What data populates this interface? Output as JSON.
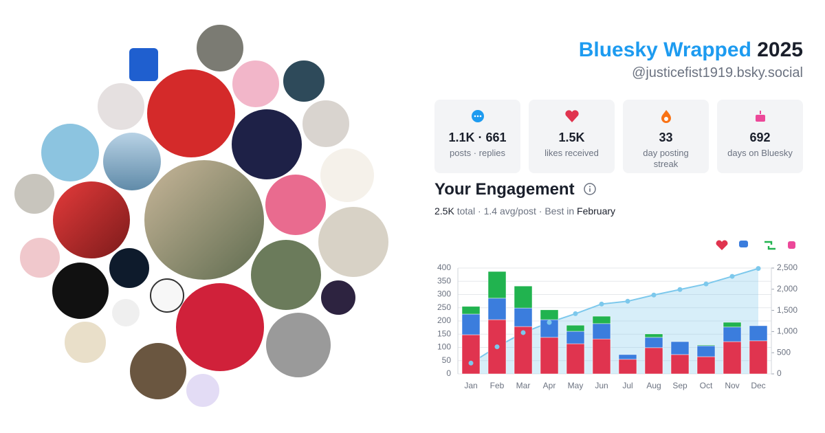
{
  "header": {
    "title": "Bluesky Wrapped",
    "year": "2025",
    "handle": "@justicefist1919.bsky.social"
  },
  "stats": [
    {
      "value": "1.1K · 661",
      "label": "posts · replies"
    },
    {
      "value": "1.5K",
      "label": "likes received"
    },
    {
      "value": "33",
      "label": "day posting streak"
    },
    {
      "value": "692",
      "label": "days on Bluesky"
    }
  ],
  "engagement": {
    "title": "Your Engagement",
    "total": "2.5K",
    "summary": " total · 1.4 avg/post · Best in ",
    "best": "February"
  },
  "chart_data": {
    "type": "stacked-bar-line",
    "categories": [
      "Jan",
      "Feb",
      "Mar",
      "Apr",
      "May",
      "Jun",
      "Jul",
      "Aug",
      "Sep",
      "Oct",
      "Nov",
      "Dec"
    ],
    "series": [
      {
        "color": "#e0344f",
        "values": [
          148,
          205,
          179,
          138,
          114,
          132,
          55,
          99,
          73,
          65,
          122,
          125
        ]
      },
      {
        "color": "#3b7ddd",
        "values": [
          78,
          81,
          70,
          67,
          47,
          58,
          18,
          39,
          49,
          41,
          55,
          57
        ]
      },
      {
        "color": "#21b34f",
        "values": [
          29,
          101,
          83,
          37,
          23,
          28,
          0,
          13,
          0,
          3,
          18,
          0
        ]
      },
      {
        "color": "#7cc8ec",
        "axis": "y2",
        "values": [
          255,
          640,
          975,
          1215,
          1422,
          1650,
          1716,
          1863,
          1993,
          2124,
          2304,
          2490
        ]
      }
    ],
    "ylim": [
      0,
      400
    ],
    "yticks": [
      0,
      50,
      100,
      150,
      200,
      250,
      300,
      350,
      400
    ],
    "y2lim": [
      0,
      2500
    ],
    "y2ticks": [
      0,
      500,
      {
        "value": 1000,
        "label": "1,000"
      },
      {
        "value": 1500,
        "label": "1,500"
      },
      {
        "value": 2000,
        "label": "2,000"
      },
      {
        "value": 2500,
        "label": "2,500"
      }
    ],
    "grid": true
  }
}
